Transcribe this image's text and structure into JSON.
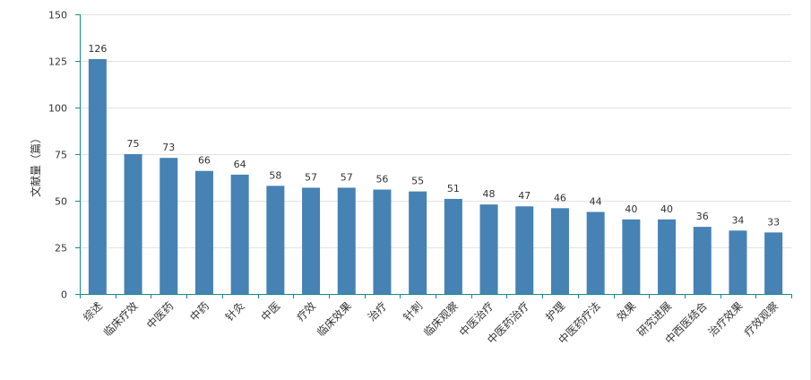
{
  "chart_data": {
    "type": "bar",
    "title": "",
    "xlabel": "",
    "ylabel": "文献量（篇）",
    "ylim": [
      0,
      150
    ],
    "yticks": [
      0,
      25,
      50,
      75,
      100,
      125,
      150
    ],
    "grid": true,
    "legend": "none",
    "bar_color": "#4682b4",
    "axis_color": "#1a8a8a",
    "categories": [
      "综述",
      "临床疗效",
      "中医药",
      "中药",
      "针灸",
      "中医",
      "疗效",
      "临床效果",
      "治疗",
      "针刺",
      "临床观察",
      "中医治疗",
      "中医药治疗",
      "护理",
      "中医药疗法",
      "效果",
      "研究进展",
      "中西医结合",
      "治疗效果",
      "疗效观察"
    ],
    "values": [
      126,
      75,
      73,
      66,
      64,
      58,
      57,
      57,
      56,
      55,
      51,
      48,
      47,
      46,
      44,
      40,
      40,
      36,
      34,
      33
    ]
  }
}
